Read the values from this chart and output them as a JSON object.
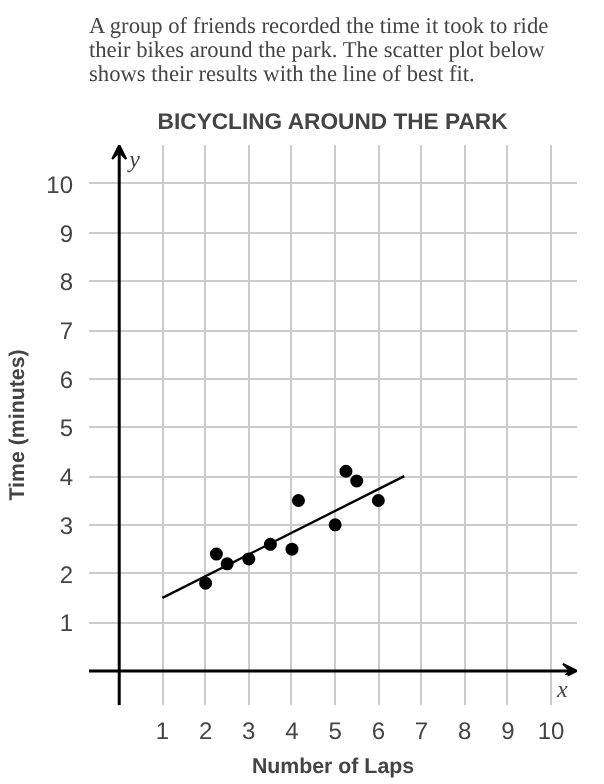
{
  "chart_data": {
    "type": "scatter",
    "subtitle": "A group of friends recorded the time it took to ride their bikes around the park.  The scatter plot below shows their results with the line of best fit.",
    "title": "BICYCLING AROUND THE PARK",
    "xlabel": "Number of Laps",
    "ylabel": "Time (minutes)",
    "annotations": [
      "x",
      "y"
    ],
    "xlim": [
      -0.7,
      10.6
    ],
    "ylim": [
      -0.7,
      10.8
    ],
    "xticks": [
      1,
      2,
      3,
      4,
      5,
      6,
      7,
      8,
      9,
      10
    ],
    "yticks": [
      1,
      2,
      3,
      4,
      5,
      6,
      7,
      8,
      9,
      10
    ],
    "grid": true,
    "series": [
      {
        "color": "#000000",
        "marker": "circle",
        "x": [
          2,
          2.25,
          2.5,
          3,
          3.5,
          4,
          4.15,
          5,
          5.25,
          5.5,
          6
        ],
        "values": [
          1.8,
          2.4,
          2.2,
          2.3,
          2.6,
          2.5,
          3.5,
          3.0,
          4.1,
          3.9,
          3.5
        ]
      },
      {
        "type": "line",
        "color": "#000000",
        "marker": "none",
        "line_style": "solid",
        "x": [
          1,
          6.6
        ],
        "values": [
          1.5,
          4.0
        ]
      }
    ]
  }
}
